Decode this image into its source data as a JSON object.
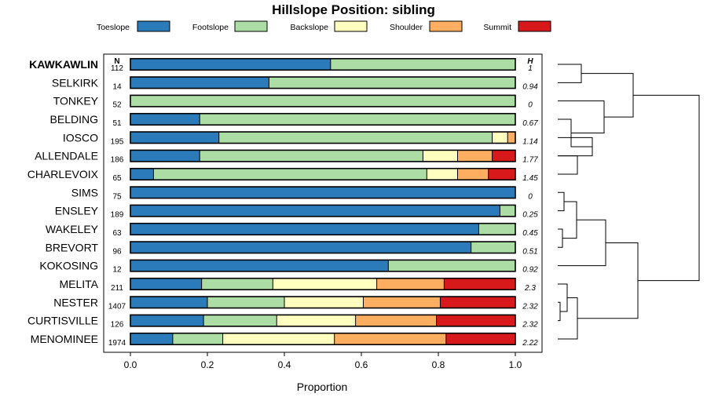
{
  "chart_data": {
    "type": "bar",
    "orientation": "horizontal",
    "stacked": true,
    "title": "Hillslope Position: sibling",
    "xlabel": "Proportion",
    "ylabel": "",
    "xlim": [
      0,
      1
    ],
    "x_ticks": [
      "0.0",
      "0.2",
      "0.4",
      "0.6",
      "0.8",
      "1.0"
    ],
    "n_label": "N",
    "h_label": "H",
    "legend_position": "top",
    "series": [
      {
        "name": "Toeslope",
        "color": "#2b7bba"
      },
      {
        "name": "Footslope",
        "color": "#abdda4"
      },
      {
        "name": "Backslope",
        "color": "#ffffbf"
      },
      {
        "name": "Shoulder",
        "color": "#fdae61"
      },
      {
        "name": "Summit",
        "color": "#d7191c"
      }
    ],
    "categories": [
      {
        "name": "KAWKAWLIN",
        "bold": true,
        "n": "112",
        "h": "1",
        "values": [
          0.52,
          0.48,
          0,
          0,
          0
        ]
      },
      {
        "name": "SELKIRK",
        "n": "14",
        "h": "0.94",
        "values": [
          0.36,
          0.64,
          0,
          0,
          0
        ]
      },
      {
        "name": "TONKEY",
        "n": "52",
        "h": "0",
        "values": [
          0,
          1.0,
          0,
          0,
          0
        ]
      },
      {
        "name": "BELDING",
        "n": "51",
        "h": "0.67",
        "values": [
          0.18,
          0.82,
          0,
          0,
          0
        ]
      },
      {
        "name": "IOSCO",
        "n": "195",
        "h": "1.14",
        "values": [
          0.23,
          0.71,
          0.04,
          0.02,
          0
        ]
      },
      {
        "name": "ALLENDALE",
        "n": "186",
        "h": "1.77",
        "values": [
          0.18,
          0.58,
          0.09,
          0.09,
          0.06
        ]
      },
      {
        "name": "CHARLEVOIX",
        "n": "65",
        "h": "1.45",
        "values": [
          0.06,
          0.71,
          0.08,
          0.08,
          0.07
        ]
      },
      {
        "name": "SIMS",
        "n": "75",
        "h": "0",
        "values": [
          1.0,
          0,
          0,
          0,
          0
        ]
      },
      {
        "name": "ENSLEY",
        "n": "189",
        "h": "0.25",
        "values": [
          0.96,
          0.04,
          0,
          0,
          0
        ]
      },
      {
        "name": "WAKELEY",
        "n": "63",
        "h": "0.45",
        "values": [
          0.905,
          0.095,
          0,
          0,
          0
        ]
      },
      {
        "name": "BREVORT",
        "n": "96",
        "h": "0.51",
        "values": [
          0.885,
          0.115,
          0,
          0,
          0
        ]
      },
      {
        "name": "KOKOSING",
        "n": "12",
        "h": "0.92",
        "values": [
          0.67,
          0.33,
          0,
          0,
          0
        ]
      },
      {
        "name": "MELITA",
        "n": "211",
        "h": "2.3",
        "values": [
          0.185,
          0.185,
          0.27,
          0.175,
          0.185
        ]
      },
      {
        "name": "NESTER",
        "n": "1407",
        "h": "2.32",
        "values": [
          0.2,
          0.2,
          0.205,
          0.2,
          0.195
        ]
      },
      {
        "name": "CURTISVILLE",
        "n": "126",
        "h": "2.32",
        "values": [
          0.19,
          0.19,
          0.205,
          0.21,
          0.205
        ]
      },
      {
        "name": "MENOMINEE",
        "n": "1974",
        "h": "2.22",
        "values": [
          0.11,
          0.13,
          0.29,
          0.29,
          0.18
        ]
      }
    ]
  }
}
